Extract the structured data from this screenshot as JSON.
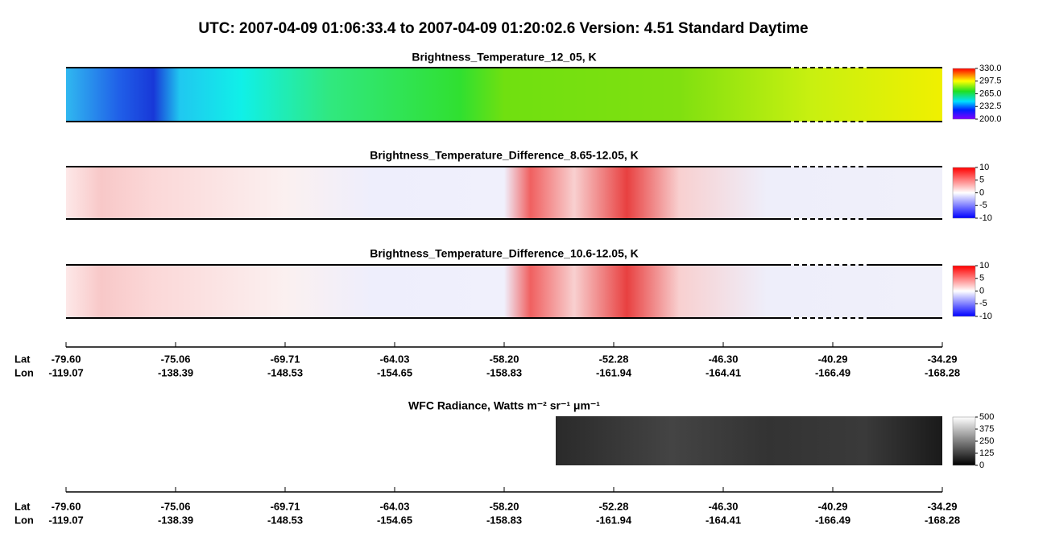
{
  "title": "UTC:  2007-04-09   01:06:33.4  to  2007-04-09   01:20:02.6    Version: 4.51  Standard Daytime",
  "x_axis": {
    "row_labels": [
      "Lat",
      "Lon"
    ],
    "lat": [
      "-79.60",
      "-75.06",
      "-69.71",
      "-64.03",
      "-58.20",
      "-52.28",
      "-46.30",
      "-40.29",
      "-34.29"
    ],
    "lon": [
      "-119.07",
      "-138.39",
      "-148.53",
      "-154.65",
      "-158.83",
      "-161.94",
      "-164.41",
      "-166.49",
      "-168.28"
    ]
  },
  "chart_data": [
    {
      "type": "heatmap",
      "title": "Brightness_Temperature_12_05, K",
      "colormap": "rainbow",
      "zlim": [
        200,
        330
      ],
      "zticks": [
        {
          "value": 330,
          "label": "330.0"
        },
        {
          "value": 297.5,
          "label": "297.5"
        },
        {
          "value": 265,
          "label": "265.0"
        },
        {
          "value": 232.5,
          "label": "232.5"
        },
        {
          "value": 200,
          "label": "200.0"
        }
      ]
    },
    {
      "type": "heatmap",
      "title": "Brightness_Temperature_Difference_8.65-12.05, K",
      "colormap": "bwr",
      "zlim": [
        -10,
        10
      ],
      "zticks": [
        10,
        5,
        0,
        -5,
        -10
      ]
    },
    {
      "type": "heatmap",
      "title": "Brightness_Temperature_Difference_10.6-12.05, K",
      "colormap": "bwr",
      "zlim": [
        -10,
        10
      ],
      "zticks": [
        10,
        5,
        0,
        -5,
        -10
      ]
    },
    {
      "type": "heatmap",
      "title": "WFC Radiance, Watts m⁻² sr⁻¹ μm⁻¹",
      "colormap": "gray",
      "zlim": [
        0,
        500
      ],
      "zticks": [
        500,
        375,
        250,
        125,
        0
      ]
    }
  ]
}
